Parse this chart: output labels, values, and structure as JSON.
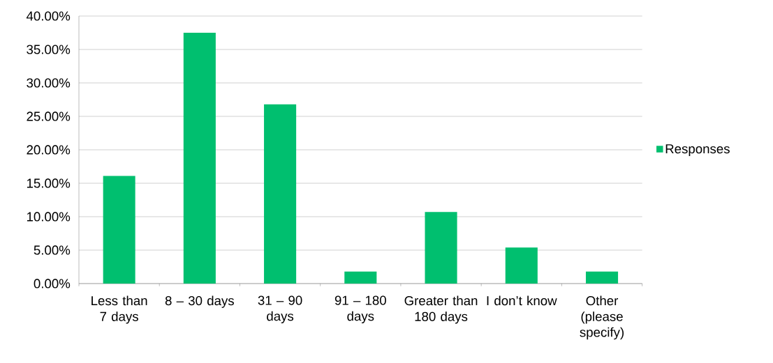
{
  "chart_data": {
    "type": "bar",
    "categories": [
      "Less than 7 days",
      "8 – 30 days",
      "31 – 90 days",
      "91 – 180 days",
      "Greater than 180 days",
      "I don’t know",
      "Other (please specify)"
    ],
    "series": [
      {
        "name": "Responses",
        "color": "#00bf6f",
        "values": [
          16.1,
          37.5,
          26.8,
          1.8,
          10.7,
          5.4,
          1.8
        ]
      }
    ],
    "ylim": [
      0,
      40
    ],
    "yticks": [
      {
        "value": 0,
        "label": "0.00%"
      },
      {
        "value": 5,
        "label": "5.00%"
      },
      {
        "value": 10,
        "label": "10.00%"
      },
      {
        "value": 15,
        "label": "15.00%"
      },
      {
        "value": 20,
        "label": "20.00%"
      },
      {
        "value": 25,
        "label": "25.00%"
      },
      {
        "value": 30,
        "label": "30.00%"
      },
      {
        "value": 35,
        "label": "35.00%"
      },
      {
        "value": 40,
        "label": "40.00%"
      }
    ],
    "grid": "y",
    "legend": "right"
  }
}
